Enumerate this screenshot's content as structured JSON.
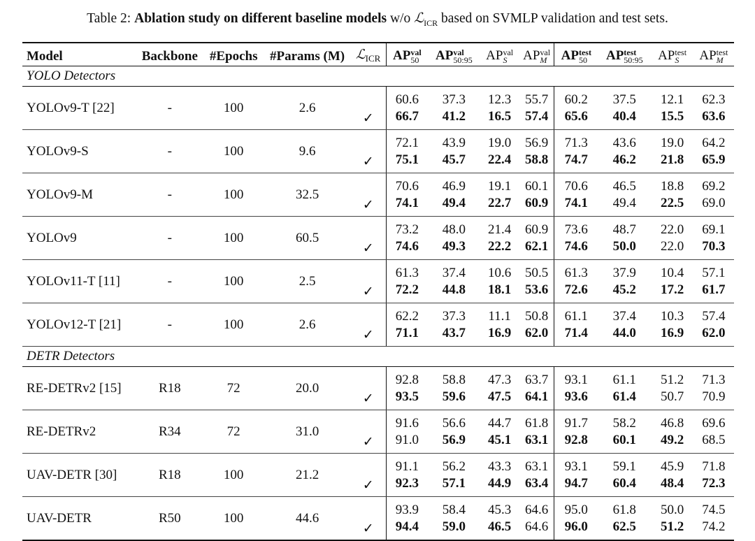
{
  "caption": {
    "prefix": "Table 2: ",
    "bold_text": "Ablation study on different baseline models",
    "middle": " w/o ",
    "loss_symbol": "ℒ",
    "loss_sub": "ICR",
    "suffix": " based on SVMLP validation and test sets."
  },
  "headers": {
    "model": "Model",
    "backbone": "Backbone",
    "epochs": "#Epochs",
    "params": "#Params (M)",
    "loss_symbol": "ℒ",
    "loss_sub": "ICR",
    "ap": "AP",
    "val": "val",
    "test": "test",
    "s50": "50",
    "s5095": "50:95",
    "sS": "S",
    "sM": "M"
  },
  "check_symbol": "✓",
  "sections": [
    {
      "title": "YOLO Detectors",
      "rows": [
        {
          "model": "YOLOv9-T [22]",
          "backbone": "-",
          "epochs": "100",
          "params": "2.6",
          "base": [
            "60.6",
            "37.3",
            "12.3",
            "55.7",
            "60.2",
            "37.5",
            "12.1",
            "62.3"
          ],
          "icr": [
            "66.7",
            "41.2",
            "16.5",
            "57.4",
            "65.6",
            "40.4",
            "15.5",
            "63.6"
          ],
          "icr_bold": [
            true,
            true,
            true,
            true,
            true,
            true,
            true,
            true
          ]
        },
        {
          "model": "YOLOv9-S",
          "backbone": "-",
          "epochs": "100",
          "params": "9.6",
          "base": [
            "72.1",
            "43.9",
            "19.0",
            "56.9",
            "71.3",
            "43.6",
            "19.0",
            "64.2"
          ],
          "icr": [
            "75.1",
            "45.7",
            "22.4",
            "58.8",
            "74.7",
            "46.2",
            "21.8",
            "65.9"
          ],
          "icr_bold": [
            true,
            true,
            true,
            true,
            true,
            true,
            true,
            true
          ]
        },
        {
          "model": "YOLOv9-M",
          "backbone": "-",
          "epochs": "100",
          "params": "32.5",
          "base": [
            "70.6",
            "46.9",
            "19.1",
            "60.1",
            "70.6",
            "46.5",
            "18.8",
            "69.2"
          ],
          "icr": [
            "74.1",
            "49.4",
            "22.7",
            "60.9",
            "74.1",
            "49.4",
            "22.5",
            "69.0"
          ],
          "icr_bold": [
            true,
            true,
            true,
            true,
            true,
            false,
            true,
            false
          ]
        },
        {
          "model": "YOLOv9",
          "backbone": "-",
          "epochs": "100",
          "params": "60.5",
          "base": [
            "73.2",
            "48.0",
            "21.4",
            "60.9",
            "73.6",
            "48.7",
            "22.0",
            "69.1"
          ],
          "icr": [
            "74.6",
            "49.3",
            "22.2",
            "62.1",
            "74.6",
            "50.0",
            "22.0",
            "70.3"
          ],
          "icr_bold": [
            true,
            true,
            true,
            true,
            true,
            true,
            false,
            true
          ]
        },
        {
          "model": "YOLOv11-T [11]",
          "backbone": "-",
          "epochs": "100",
          "params": "2.5",
          "base": [
            "61.3",
            "37.4",
            "10.6",
            "50.5",
            "61.3",
            "37.9",
            "10.4",
            "57.1"
          ],
          "icr": [
            "72.2",
            "44.8",
            "18.1",
            "53.6",
            "72.6",
            "45.2",
            "17.2",
            "61.7"
          ],
          "icr_bold": [
            true,
            true,
            true,
            true,
            true,
            true,
            true,
            true
          ]
        },
        {
          "model": "YOLOv12-T [21]",
          "backbone": "-",
          "epochs": "100",
          "params": "2.6",
          "base": [
            "62.2",
            "37.3",
            "11.1",
            "50.8",
            "61.1",
            "37.4",
            "10.3",
            "57.4"
          ],
          "icr": [
            "71.1",
            "43.7",
            "16.9",
            "62.0",
            "71.4",
            "44.0",
            "16.9",
            "62.0"
          ],
          "icr_bold": [
            true,
            true,
            true,
            true,
            true,
            true,
            true,
            true
          ]
        }
      ]
    },
    {
      "title": "DETR Detectors",
      "rows": [
        {
          "model": "RE-DETRv2 [15]",
          "backbone": "R18",
          "epochs": "72",
          "params": "20.0",
          "base": [
            "92.8",
            "58.8",
            "47.3",
            "63.7",
            "93.1",
            "61.1",
            "51.2",
            "71.3"
          ],
          "icr": [
            "93.5",
            "59.6",
            "47.5",
            "64.1",
            "93.6",
            "61.4",
            "50.7",
            "70.9"
          ],
          "icr_bold": [
            true,
            true,
            true,
            true,
            true,
            true,
            false,
            false
          ]
        },
        {
          "model": "RE-DETRv2",
          "backbone": "R34",
          "epochs": "72",
          "params": "31.0",
          "base": [
            "91.6",
            "56.6",
            "44.7",
            "61.8",
            "91.7",
            "58.2",
            "46.8",
            "69.6"
          ],
          "icr": [
            "91.0",
            "56.9",
            "45.1",
            "63.1",
            "92.8",
            "60.1",
            "49.2",
            "68.5"
          ],
          "icr_bold": [
            false,
            true,
            true,
            true,
            true,
            true,
            true,
            false
          ]
        },
        {
          "model": "UAV-DETR [30]",
          "backbone": "R18",
          "epochs": "100",
          "params": "21.2",
          "base": [
            "91.1",
            "56.2",
            "43.3",
            "63.1",
            "93.1",
            "59.1",
            "45.9",
            "71.8"
          ],
          "icr": [
            "92.3",
            "57.1",
            "44.9",
            "63.4",
            "94.7",
            "60.4",
            "48.4",
            "72.3"
          ],
          "icr_bold": [
            true,
            true,
            true,
            true,
            true,
            true,
            true,
            true
          ]
        },
        {
          "model": "UAV-DETR",
          "backbone": "R50",
          "epochs": "100",
          "params": "44.6",
          "base": [
            "93.9",
            "58.4",
            "45.3",
            "64.6",
            "95.0",
            "61.8",
            "50.0",
            "74.5"
          ],
          "icr": [
            "94.4",
            "59.0",
            "46.5",
            "64.6",
            "96.0",
            "62.5",
            "51.2",
            "74.2"
          ],
          "icr_bold": [
            true,
            true,
            true,
            false,
            true,
            true,
            true,
            false
          ]
        }
      ]
    }
  ]
}
